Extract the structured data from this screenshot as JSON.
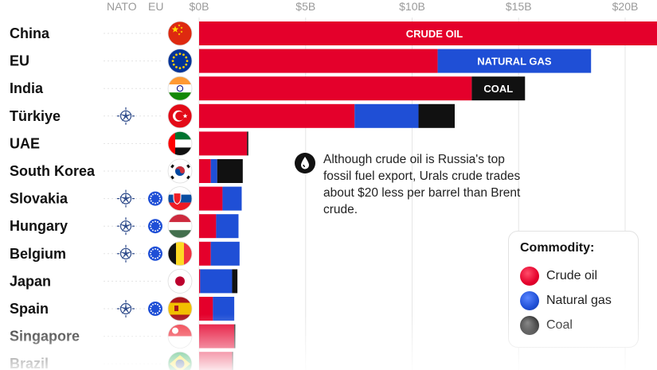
{
  "header": {
    "nato_label": "NATO",
    "eu_label": "EU"
  },
  "note": {
    "text": "Although crude oil is Russia's top fossil fuel export, Urals crude trades about $20 less per barrel than Brent crude."
  },
  "legend": {
    "title": "Commodity:",
    "items": [
      {
        "label": "Crude oil",
        "color": "#e4002b"
      },
      {
        "label": "Natural gas",
        "color": "#1f4fd6"
      },
      {
        "label": "Coal",
        "color": "#111111"
      }
    ]
  },
  "chart_data": {
    "type": "bar",
    "orientation": "horizontal",
    "stacked": true,
    "x_ticks": [
      "$0B",
      "$5B",
      "$10B",
      "$15B",
      "$20B"
    ],
    "x_tick_values": [
      0,
      5,
      10,
      15,
      20
    ],
    "xlim": [
      0,
      21
    ],
    "colors": {
      "crude": "#e4002b",
      "gas": "#1f4fd6",
      "coal": "#111111"
    },
    "rows": [
      {
        "name": "China",
        "nato": false,
        "eu": false,
        "flag": "china-flag-icon",
        "crude": 21.5,
        "gas": 0,
        "coal": 0,
        "bar_label": "CRUDE OIL",
        "bar_label_segment": "crude"
      },
      {
        "name": "EU",
        "nato": false,
        "eu": false,
        "flag": "eu-flag-icon",
        "crude": 11.2,
        "gas": 7.2,
        "coal": 0,
        "bar_label": "NATURAL GAS",
        "bar_label_segment": "gas"
      },
      {
        "name": "India",
        "nato": false,
        "eu": false,
        "flag": "india-flag-icon",
        "crude": 12.8,
        "gas": 0,
        "coal": 2.5,
        "bar_label": "COAL",
        "bar_label_segment": "coal"
      },
      {
        "name": "Türkiye",
        "nato": true,
        "eu": false,
        "flag": "turkiye-flag-icon",
        "crude": 7.3,
        "gas": 3.0,
        "coal": 1.7
      },
      {
        "name": "UAE",
        "nato": false,
        "eu": false,
        "flag": "uae-flag-icon",
        "crude": 2.25,
        "gas": 0,
        "coal": 0.06
      },
      {
        "name": "South Korea",
        "nato": false,
        "eu": false,
        "flag": "south-korea-flag-icon",
        "crude": 0.55,
        "gas": 0.3,
        "coal": 1.2
      },
      {
        "name": "Slovakia",
        "nato": true,
        "eu": true,
        "flag": "slovakia-flag-icon",
        "crude": 1.1,
        "gas": 0.9,
        "coal": 0
      },
      {
        "name": "Hungary",
        "nato": true,
        "eu": true,
        "flag": "hungary-flag-icon",
        "crude": 0.8,
        "gas": 1.05,
        "coal": 0
      },
      {
        "name": "Belgium",
        "nato": true,
        "eu": true,
        "flag": "belgium-flag-icon",
        "crude": 0.55,
        "gas": 1.35,
        "coal": 0
      },
      {
        "name": "Japan",
        "nato": false,
        "eu": false,
        "flag": "japan-flag-icon",
        "crude": 0.05,
        "gas": 1.5,
        "coal": 0.25
      },
      {
        "name": "Spain",
        "nato": true,
        "eu": true,
        "flag": "spain-flag-icon",
        "crude": 0.65,
        "gas": 1.0,
        "coal": 0
      },
      {
        "name": "Singapore",
        "nato": false,
        "eu": false,
        "flag": "singapore-flag-icon",
        "crude": 1.65,
        "gas": 0,
        "coal": 0.05
      },
      {
        "name": "Brazil",
        "nato": false,
        "eu": false,
        "flag": "brazil-flag-icon",
        "crude": 1.55,
        "gas": 0,
        "coal": 0.05
      }
    ]
  }
}
